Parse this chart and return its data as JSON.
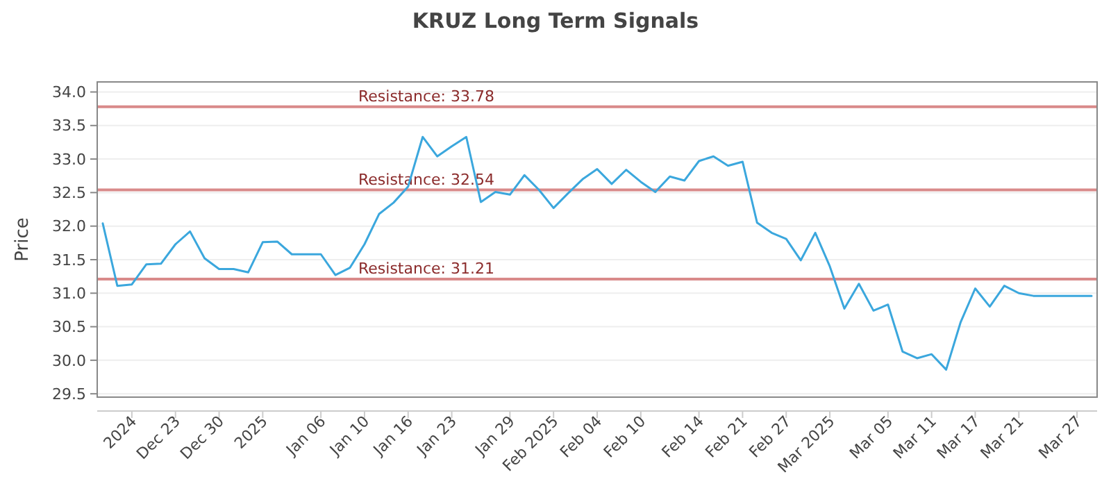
{
  "chart_data": {
    "type": "line",
    "title": "KRUZ Long Term Signals",
    "ylabel": "Price",
    "categories": [
      null,
      null,
      "2024",
      null,
      null,
      "Dec 23",
      null,
      null,
      "Dec 30",
      null,
      null,
      "2025",
      null,
      null,
      null,
      "Jan 06",
      null,
      null,
      "Jan 10",
      null,
      null,
      "Jan 16",
      null,
      null,
      "Jan 23",
      null,
      null,
      null,
      "Jan 29",
      null,
      null,
      "Feb 2025",
      null,
      null,
      "Feb 04",
      null,
      null,
      "Feb 10",
      null,
      null,
      null,
      "Feb 14",
      null,
      null,
      "Feb 21",
      null,
      null,
      "Feb 27",
      null,
      null,
      "Mar 2025",
      null,
      null,
      null,
      "Mar 05",
      null,
      null,
      "Mar 11",
      null,
      null,
      "Mar 17",
      null,
      null,
      "Mar 21",
      null,
      null,
      null,
      "Mar 27",
      null
    ],
    "series": [
      {
        "color": "#3ba7dd",
        "values": [
          32.04,
          31.11,
          31.13,
          31.43,
          31.44,
          31.73,
          31.92,
          31.52,
          31.36,
          31.36,
          31.31,
          31.76,
          31.77,
          31.58,
          31.58,
          31.58,
          31.27,
          31.38,
          31.73,
          32.18,
          32.35,
          32.59,
          33.33,
          33.04,
          33.19,
          33.33,
          32.36,
          32.51,
          32.47,
          32.76,
          32.54,
          32.27,
          32.49,
          32.7,
          32.85,
          32.63,
          32.84,
          32.66,
          32.51,
          32.74,
          32.68,
          32.97,
          33.04,
          32.9,
          32.96,
          32.05,
          31.9,
          31.81,
          31.49,
          31.9,
          31.4,
          30.77,
          31.14,
          30.74,
          30.83,
          30.13,
          30.03,
          30.09,
          29.86,
          30.57,
          31.07,
          30.8,
          31.11,
          31.0,
          30.96,
          30.96,
          30.96,
          30.96,
          30.96
        ]
      }
    ],
    "ylim": [
      29.45,
      34.15
    ],
    "yticks": [
      {
        "value": 29.5,
        "label": "29.5"
      },
      {
        "value": 30,
        "label": "30.0"
      },
      {
        "value": 30.5,
        "label": "30.5"
      },
      {
        "value": 31,
        "label": "31.0"
      },
      {
        "value": 31.5,
        "label": "31.5"
      },
      {
        "value": 32,
        "label": "32.0"
      },
      {
        "value": 32.5,
        "label": "32.5"
      },
      {
        "value": 33,
        "label": "33.0"
      },
      {
        "value": 33.5,
        "label": "33.5"
      },
      {
        "value": 34,
        "label": "34.0"
      }
    ],
    "grid": "y",
    "marker": "none",
    "line_style": "solid",
    "ref_lines": [
      {
        "axis": "y",
        "value": 33.78,
        "label": "Resistance: 33.78",
        "color": "#d98a8a"
      },
      {
        "axis": "y",
        "value": 32.54,
        "label": "Resistance: 32.54",
        "color": "#d98a8a"
      },
      {
        "axis": "y",
        "value": 31.21,
        "label": "Resistance: 31.21",
        "color": "#d98a8a"
      }
    ]
  }
}
